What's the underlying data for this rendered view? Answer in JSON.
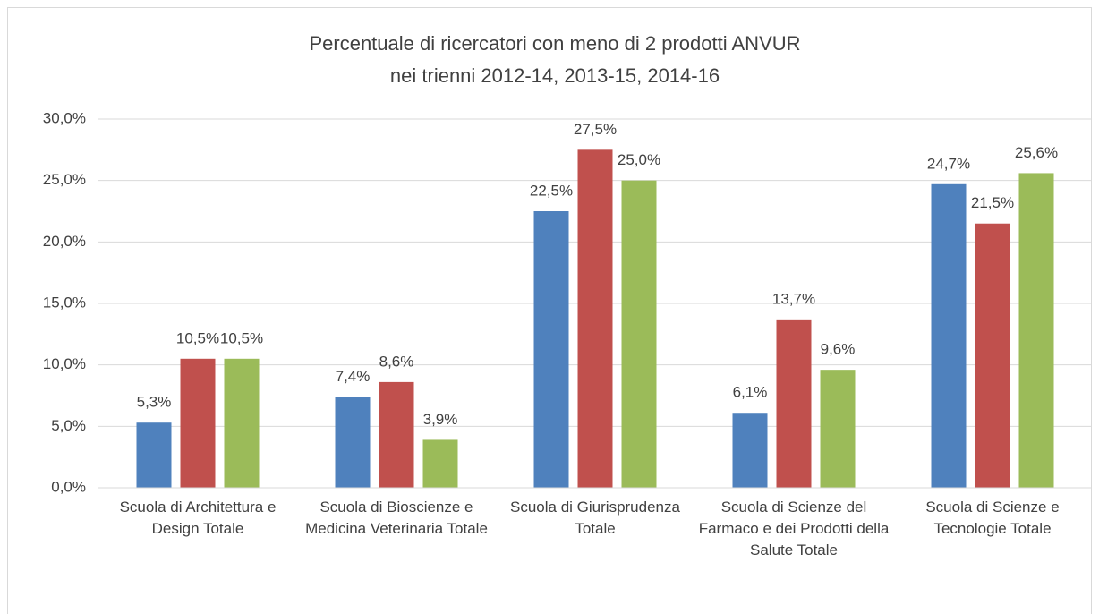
{
  "chart_data": {
    "type": "bar",
    "title": "Percentuale di ricercatori con meno di 2 prodotti ANVUR",
    "subtitle": "nei trienni 2012-14, 2013-15, 2014-16",
    "categories": [
      "Scuola di Architettura e Design Totale",
      "Scuola di Bioscienze e Medicina Veterinaria Totale",
      "Scuola di Giurisprudenza Totale",
      "Scuola di Scienze del Farmaco e dei Prodotti della Salute Totale",
      "Scuola di Scienze e Tecnologie Totale"
    ],
    "series": [
      {
        "color": "#4f81bd",
        "values": [
          5.3,
          7.4,
          22.5,
          6.1,
          24.7
        ],
        "value_labels": [
          "5,3%",
          "7,4%",
          "22,5%",
          "6,1%",
          "24,7%"
        ]
      },
      {
        "color": "#c0504d",
        "values": [
          10.5,
          8.6,
          27.5,
          13.7,
          21.5
        ],
        "value_labels": [
          "10,5%",
          "8,6%",
          "27,5%",
          "13,7%",
          "21,5%"
        ]
      },
      {
        "color": "#9bbb59",
        "values": [
          10.5,
          3.9,
          25.0,
          9.6,
          25.6
        ],
        "value_labels": [
          "10,5%",
          "3,9%",
          "25,0%",
          "9,6%",
          "25,6%"
        ]
      }
    ],
    "ylim": [
      0,
      30
    ],
    "yticks": [
      {
        "value": 0,
        "label": "0,0%"
      },
      {
        "value": 5,
        "label": "5,0%"
      },
      {
        "value": 10,
        "label": "10,0%"
      },
      {
        "value": 15,
        "label": "15,0%"
      },
      {
        "value": 20,
        "label": "20,0%"
      },
      {
        "value": 25,
        "label": "25,0%"
      },
      {
        "value": 30,
        "label": "30,0%"
      }
    ],
    "grid": true
  }
}
